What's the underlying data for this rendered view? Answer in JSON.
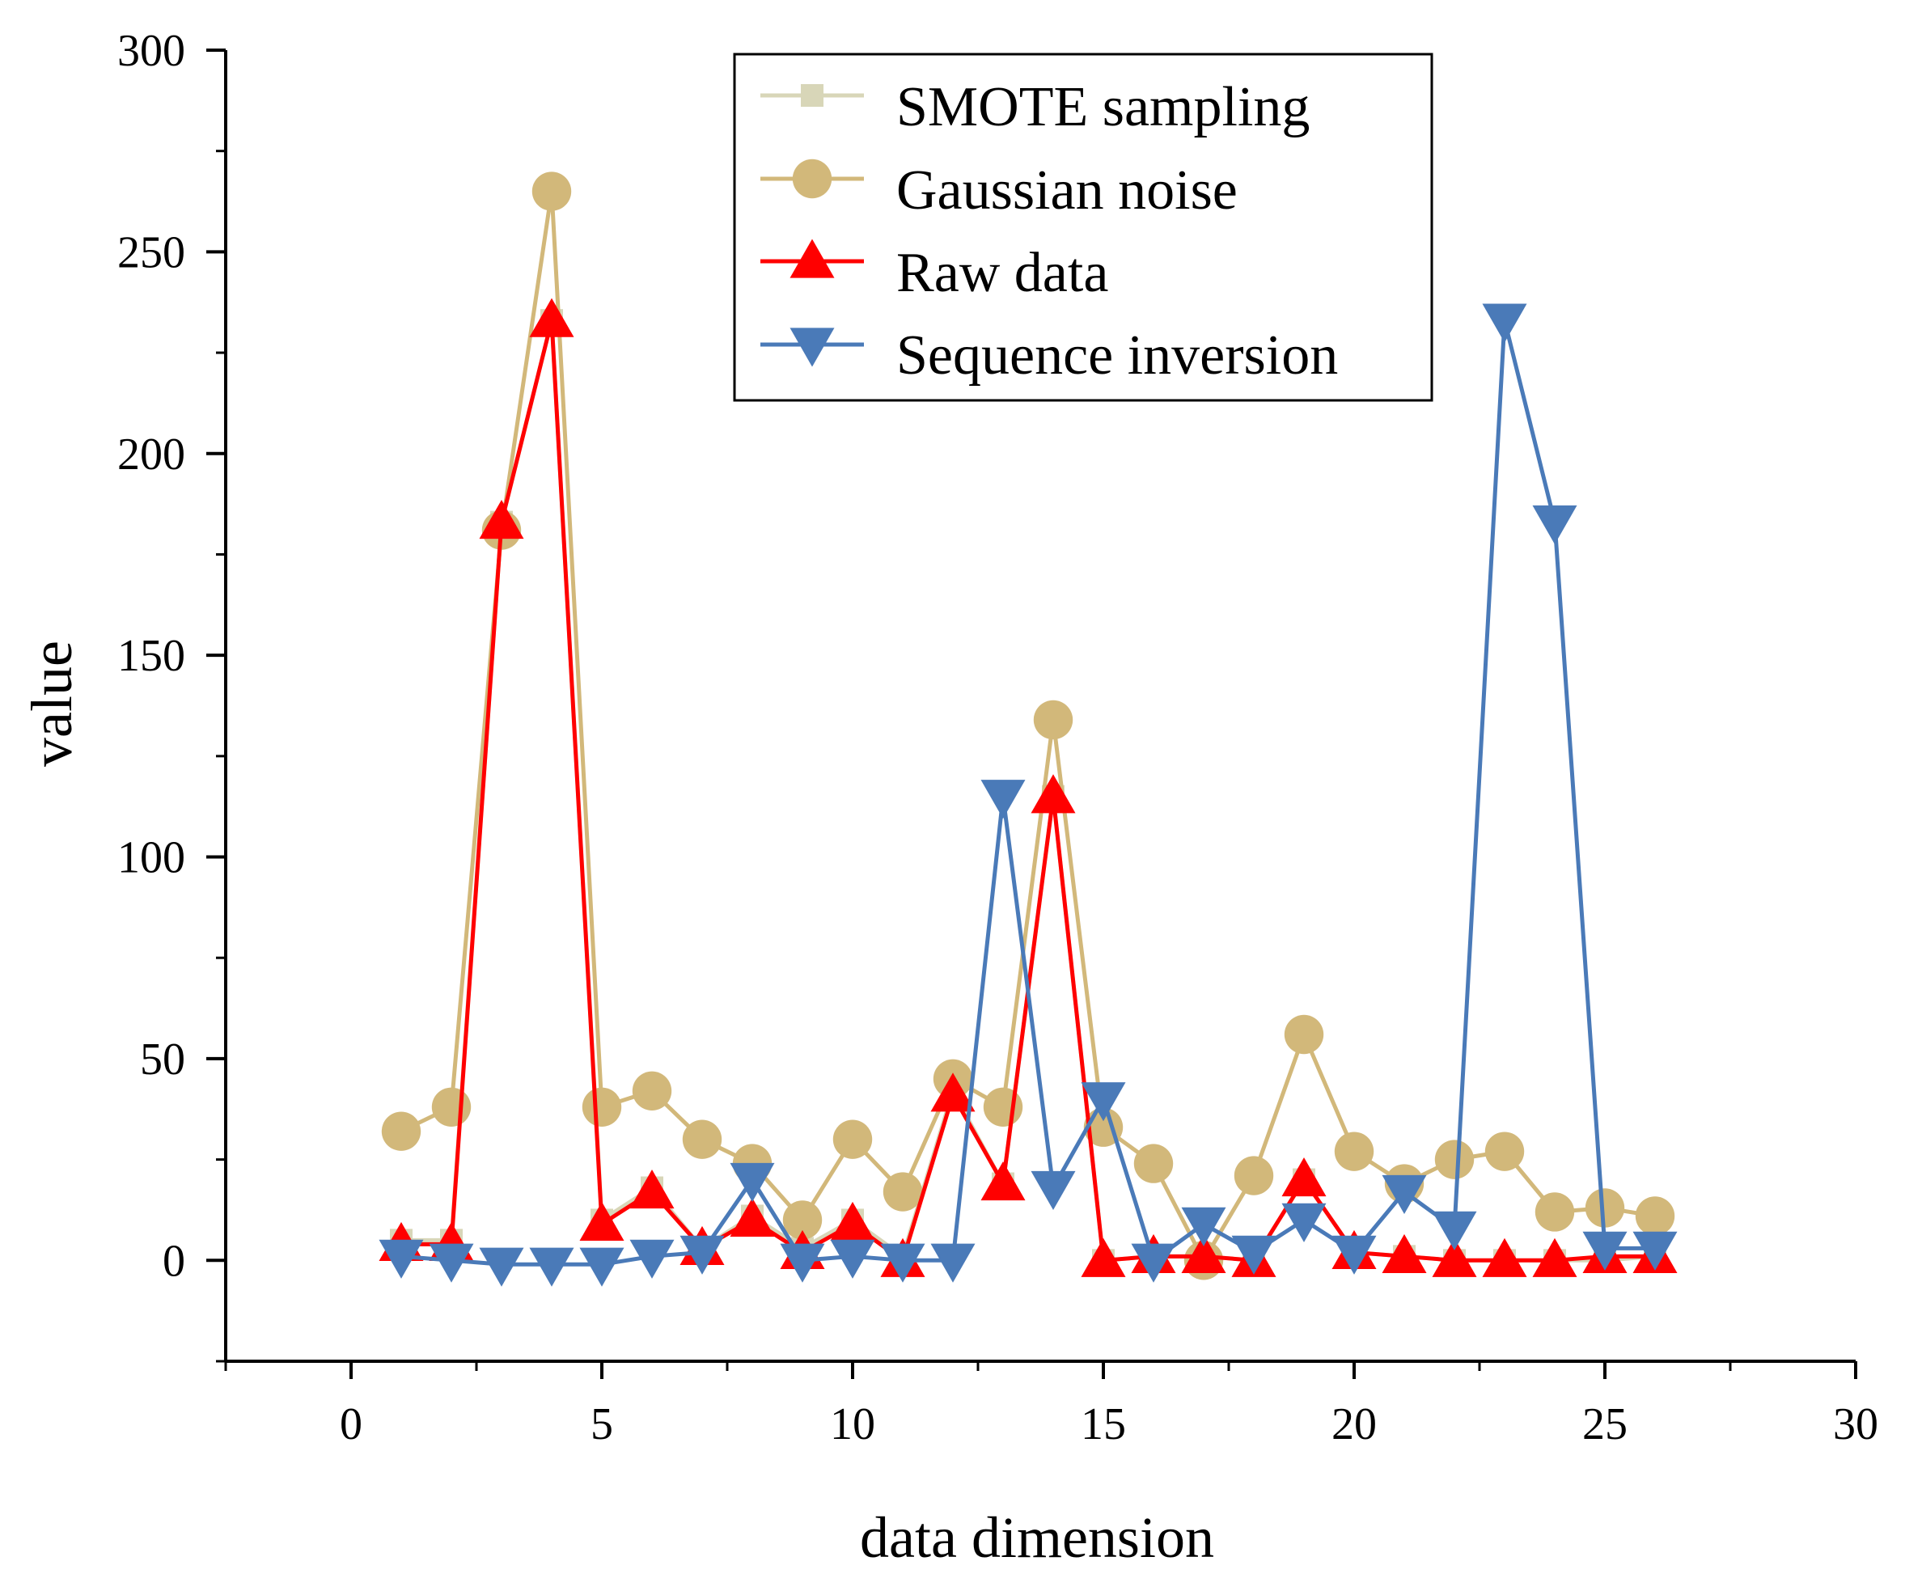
{
  "chart_data": {
    "type": "line",
    "title": "",
    "xlabel": "data dimension",
    "ylabel": "value",
    "xlim": [
      -2.5,
      30
    ],
    "ylim": [
      -25,
      300
    ],
    "xticks": [
      0,
      5,
      10,
      15,
      20,
      25,
      30
    ],
    "yticks": [
      0,
      50,
      100,
      150,
      200,
      250,
      300
    ],
    "grid": false,
    "legend_position": "top-right",
    "x": [
      1,
      2,
      3,
      4,
      5,
      6,
      7,
      8,
      9,
      10,
      11,
      12,
      13,
      14,
      15,
      16,
      17,
      18,
      19,
      20,
      21,
      22,
      23,
      24,
      25,
      26
    ],
    "series": [
      {
        "name": "SMOTE sampling",
        "color": "#d8d6b8",
        "marker": "square",
        "values": [
          5,
          5,
          183,
          233,
          10,
          18,
          3,
          11,
          3,
          10,
          1,
          42,
          19,
          115,
          0,
          1,
          1,
          0,
          20,
          2,
          1,
          0,
          0,
          0,
          0,
          1
        ]
      },
      {
        "name": "Gaussian noise",
        "color": "#d2b87a",
        "marker": "circle",
        "values": [
          32,
          38,
          181,
          265,
          38,
          42,
          30,
          24,
          10,
          30,
          17,
          45,
          38,
          134,
          33,
          24,
          0,
          21,
          56,
          27,
          19,
          25,
          27,
          12,
          13,
          11
        ]
      },
      {
        "name": "Raw data",
        "color": "#ff0000",
        "marker": "triangle-up",
        "values": [
          4,
          4,
          183,
          233,
          9,
          17,
          3,
          10,
          2,
          9,
          0,
          41,
          19,
          115,
          0,
          1,
          1,
          0,
          20,
          2,
          1,
          0,
          0,
          0,
          1,
          1
        ]
      },
      {
        "name": "Sequence inversion",
        "color": "#4a7ab8",
        "marker": "triangle-down",
        "values": [
          1,
          0,
          -1,
          -1,
          -1,
          1,
          2,
          20,
          0,
          1,
          0,
          0,
          115,
          18,
          40,
          0,
          9,
          2,
          10,
          2,
          17,
          8,
          233,
          183,
          3,
          3
        ]
      }
    ]
  }
}
